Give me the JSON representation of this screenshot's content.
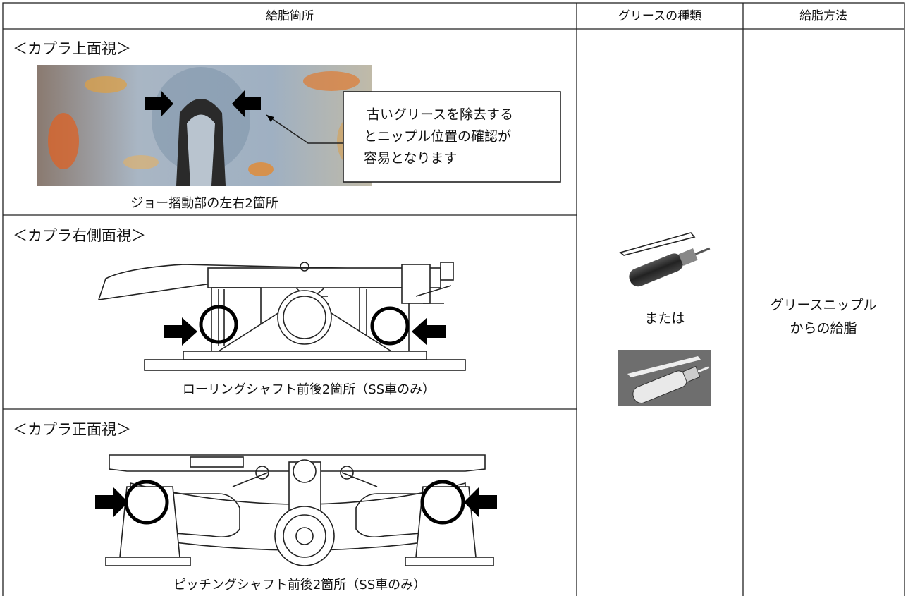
{
  "header": {
    "columns": [
      "給脂箇所",
      "グリースの種類",
      "給脂方法"
    ]
  },
  "sections": [
    {
      "title": "＜カプラ上面視＞",
      "callout_lines": [
        "古いグリースを除去する",
        "とニップル位置の確認が",
        "容易となります"
      ],
      "caption": "ジョー摺動部の左右2箇所"
    },
    {
      "title": "＜カプラ右側面視＞",
      "caption": "ローリングシャフト前後2箇所（SS車のみ）"
    },
    {
      "title": "＜カプラ正面視＞",
      "caption": "ピッチングシャフト前後2箇所（SS車のみ）"
    }
  ],
  "grease_type": {
    "separator": "または"
  },
  "method": {
    "lines": [
      "グリースニップル",
      "からの給脂"
    ]
  }
}
